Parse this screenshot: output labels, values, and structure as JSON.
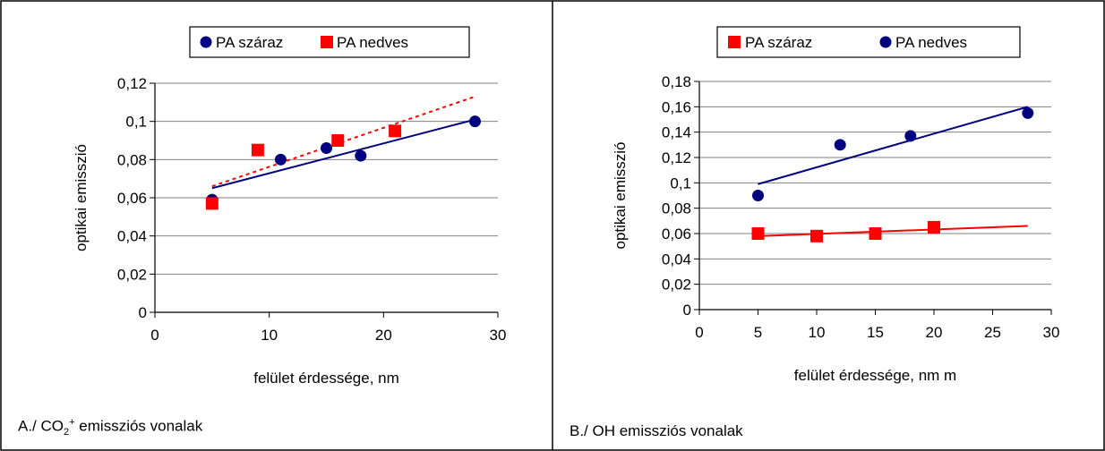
{
  "colors": {
    "blue": "#000080",
    "red": "#ff0000",
    "grid": "#808080",
    "axis": "#000000"
  },
  "chart_data": [
    {
      "type": "scatter",
      "xlabel": "felület érdessége, nm",
      "ylabel": "optikai emisszió",
      "xlim": [
        0,
        30
      ],
      "ylim": [
        0,
        0.12
      ],
      "xticks": [
        "0",
        "10",
        "20",
        "30"
      ],
      "xtick_values": [
        0,
        10,
        20,
        30
      ],
      "yticks": [
        "0",
        "0,02",
        "0,04",
        "0,06",
        "0,08",
        "0,1",
        "0,12"
      ],
      "ytick_values": [
        0,
        0.02,
        0.04,
        0.06,
        0.08,
        0.1,
        0.12
      ],
      "grid": "horizontal",
      "legend_position": "top",
      "caption": {
        "prefix": "A./ CO",
        "sub": "2",
        "sup": "+",
        "suffix": " emissziós vonalak"
      },
      "series": [
        {
          "name": "PA száraz",
          "marker": "circle",
          "color": "#000080",
          "x": [
            5,
            11,
            15,
            18,
            28
          ],
          "y": [
            0.059,
            0.08,
            0.086,
            0.082,
            0.1
          ],
          "trendline": {
            "x": [
              5,
              28
            ],
            "y": [
              0.065,
              0.101
            ],
            "style": "solid"
          }
        },
        {
          "name": "PA nedves",
          "marker": "square",
          "color": "#ff0000",
          "x": [
            5,
            9,
            16,
            21
          ],
          "y": [
            0.057,
            0.085,
            0.09,
            0.095
          ],
          "trendline": {
            "x": [
              5,
              28
            ],
            "y": [
              0.066,
              0.113
            ],
            "style": "dashed"
          }
        }
      ]
    },
    {
      "type": "scatter",
      "xlabel": "felület érdessége, nm m",
      "ylabel": "optikai emisszió",
      "xlim": [
        0,
        30
      ],
      "ylim": [
        0,
        0.18
      ],
      "xticks": [
        "0",
        "5",
        "10",
        "15",
        "20",
        "25",
        "30"
      ],
      "xtick_values": [
        0,
        5,
        10,
        15,
        20,
        25,
        30
      ],
      "yticks": [
        "0",
        "0,02",
        "0,04",
        "0,06",
        "0,08",
        "0,1",
        "0,12",
        "0,14",
        "0,16",
        "0,18"
      ],
      "ytick_values": [
        0,
        0.02,
        0.04,
        0.06,
        0.08,
        0.1,
        0.12,
        0.14,
        0.16,
        0.18
      ],
      "grid": "horizontal",
      "legend_position": "top",
      "caption": {
        "prefix": "B./ OH emissziós vonalak",
        "sub": "",
        "sup": "",
        "suffix": ""
      },
      "series": [
        {
          "name": "PA száraz",
          "marker": "square",
          "color": "#ff0000",
          "x": [
            5,
            10,
            15,
            20
          ],
          "y": [
            0.06,
            0.058,
            0.06,
            0.065
          ],
          "trendline": {
            "x": [
              5,
              28
            ],
            "y": [
              0.058,
              0.066
            ],
            "style": "solid"
          }
        },
        {
          "name": "PA nedves",
          "marker": "circle",
          "color": "#000080",
          "x": [
            5,
            12,
            18,
            28
          ],
          "y": [
            0.09,
            0.13,
            0.137,
            0.155
          ],
          "trendline": {
            "x": [
              5,
              28
            ],
            "y": [
              0.099,
              0.16
            ],
            "style": "solid"
          }
        }
      ]
    }
  ]
}
